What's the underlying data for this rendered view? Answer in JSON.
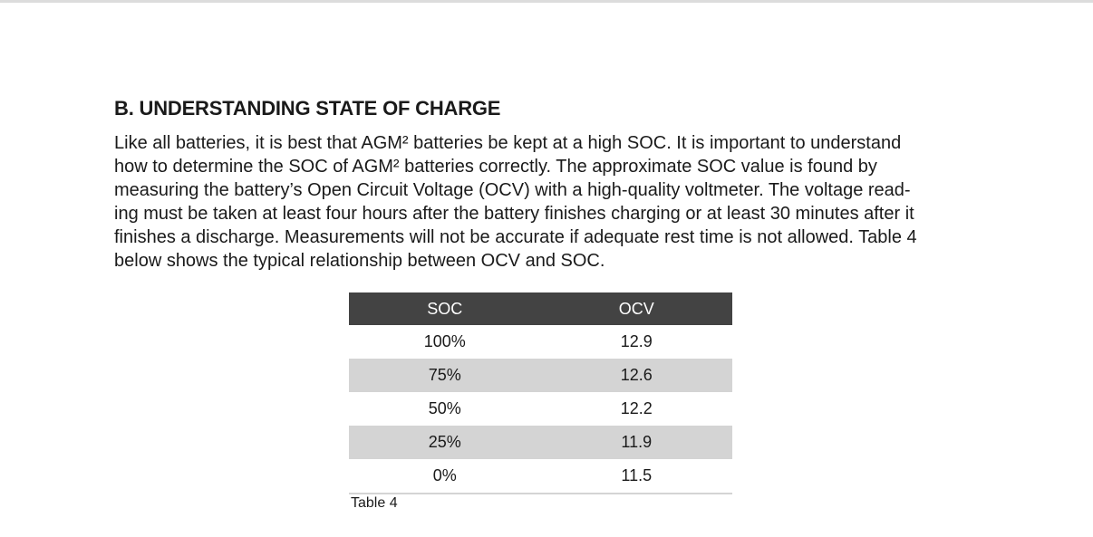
{
  "section": {
    "heading": "B. UNDERSTANDING STATE OF CHARGE",
    "paragraph_lines": [
      "Like all batteries, it is best that AGM² batteries be kept at a high SOC. It is important to understand",
      "how to determine the SOC of AGM² batteries correctly. The approximate SOC value is found by",
      "measuring the battery’s Open Circuit Voltage (OCV) with a high-quality voltmeter. The voltage read-",
      "ing must be taken at least four hours after the battery finishes charging or at least 30 minutes after it",
      "finishes a discharge. Measurements will not be accurate if adequate rest time is not allowed. Table 4",
      "below shows the typical relationship between OCV and SOC."
    ]
  },
  "table": {
    "headers": [
      "SOC",
      "OCV"
    ],
    "rows": [
      [
        "100%",
        "12.9"
      ],
      [
        "75%",
        "12.6"
      ],
      [
        "50%",
        "12.2"
      ],
      [
        "25%",
        "11.9"
      ],
      [
        "0%",
        "11.5"
      ]
    ],
    "caption": "Table 4"
  }
}
